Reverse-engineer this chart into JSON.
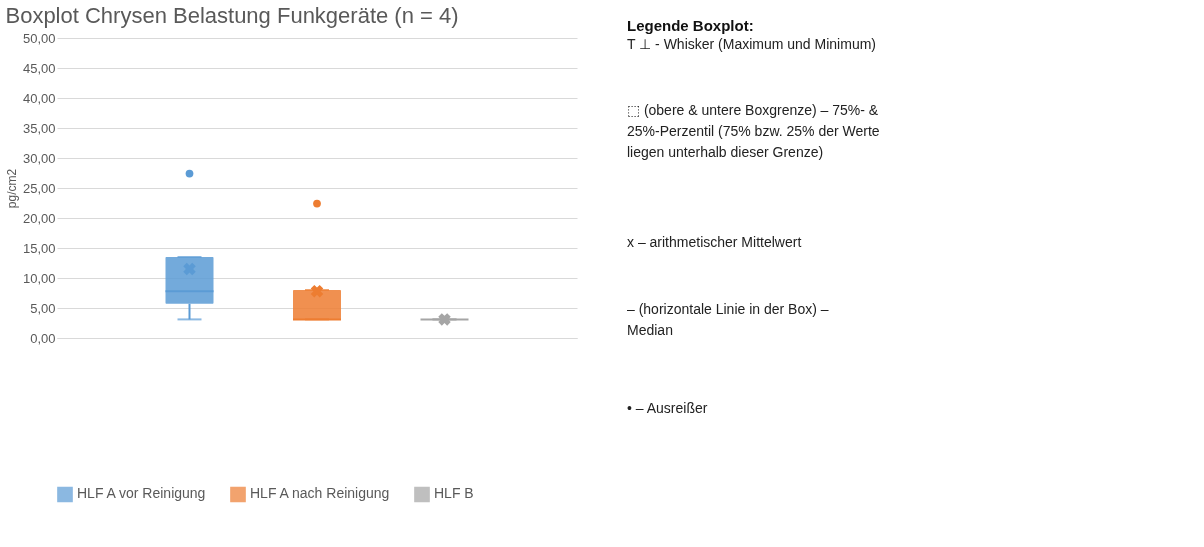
{
  "chart_data": [
    {
      "type": "box",
      "title": "Boxplot Chrysen Belastung Funkgeräte (n = 4)",
      "ylabel": "pg/cm2",
      "categories": [
        null
      ],
      "ylim": [
        0,
        50
      ],
      "yticks": [
        {
          "value": 0,
          "label": "0,00"
        },
        {
          "value": 5,
          "label": "5,00"
        },
        {
          "value": 10,
          "label": "10,00"
        },
        {
          "value": 15,
          "label": "15,00"
        },
        {
          "value": 20,
          "label": "20,00"
        },
        {
          "value": 25,
          "label": "25,00"
        },
        {
          "value": 30,
          "label": "30,00"
        },
        {
          "value": 35,
          "label": "35,00"
        },
        {
          "value": 40,
          "label": "40,00"
        },
        {
          "value": 45,
          "label": "45,00"
        },
        {
          "value": 50,
          "label": "50,00"
        }
      ],
      "grid": "y",
      "legend": "bottom",
      "tick_labels": "y",
      "series": [
        {
          "name": "HLF A vor Reinigung",
          "color": "#5b9bd5",
          "boxes": [
            {
              "low": 3.1,
              "q1": 5.7,
              "median": 7.8,
              "q3": 13.5,
              "high": 13.5,
              "mean": 11.5,
              "outliers": [
                27.4
              ]
            }
          ]
        },
        {
          "name": "HLF A nach Reinigung",
          "color": "#ed7d31",
          "boxes": [
            {
              "low": 3.1,
              "q1": 3.1,
              "median": 3.1,
              "q3": 8.0,
              "high": 8.0,
              "mean": 7.8,
              "outliers": [
                22.4
              ]
            }
          ]
        },
        {
          "name": "HLF B",
          "color": "#a5a5a5",
          "boxes": [
            {
              "low": 3.1,
              "q1": 3.1,
              "median": 3.1,
              "q3": 3.1,
              "high": 3.1,
              "mean": 3.1
            }
          ]
        }
      ]
    },
    {
      "type": "other",
      "title": "Legende Boxplot:",
      "annotations": [
        "T ⊥ - Whisker (Maximum und Minimum)",
        "⬚ (obere & untere Boxgrenze) – 75%- & 25%-Perzentil (75% bzw. 25% der Werte liegen unterhalb dieser Grenze)",
        "x – arithmetischer Mittelwert",
        "– (horizontale Linie in der Box) – Median",
        "• – Ausreißer"
      ]
    }
  ]
}
